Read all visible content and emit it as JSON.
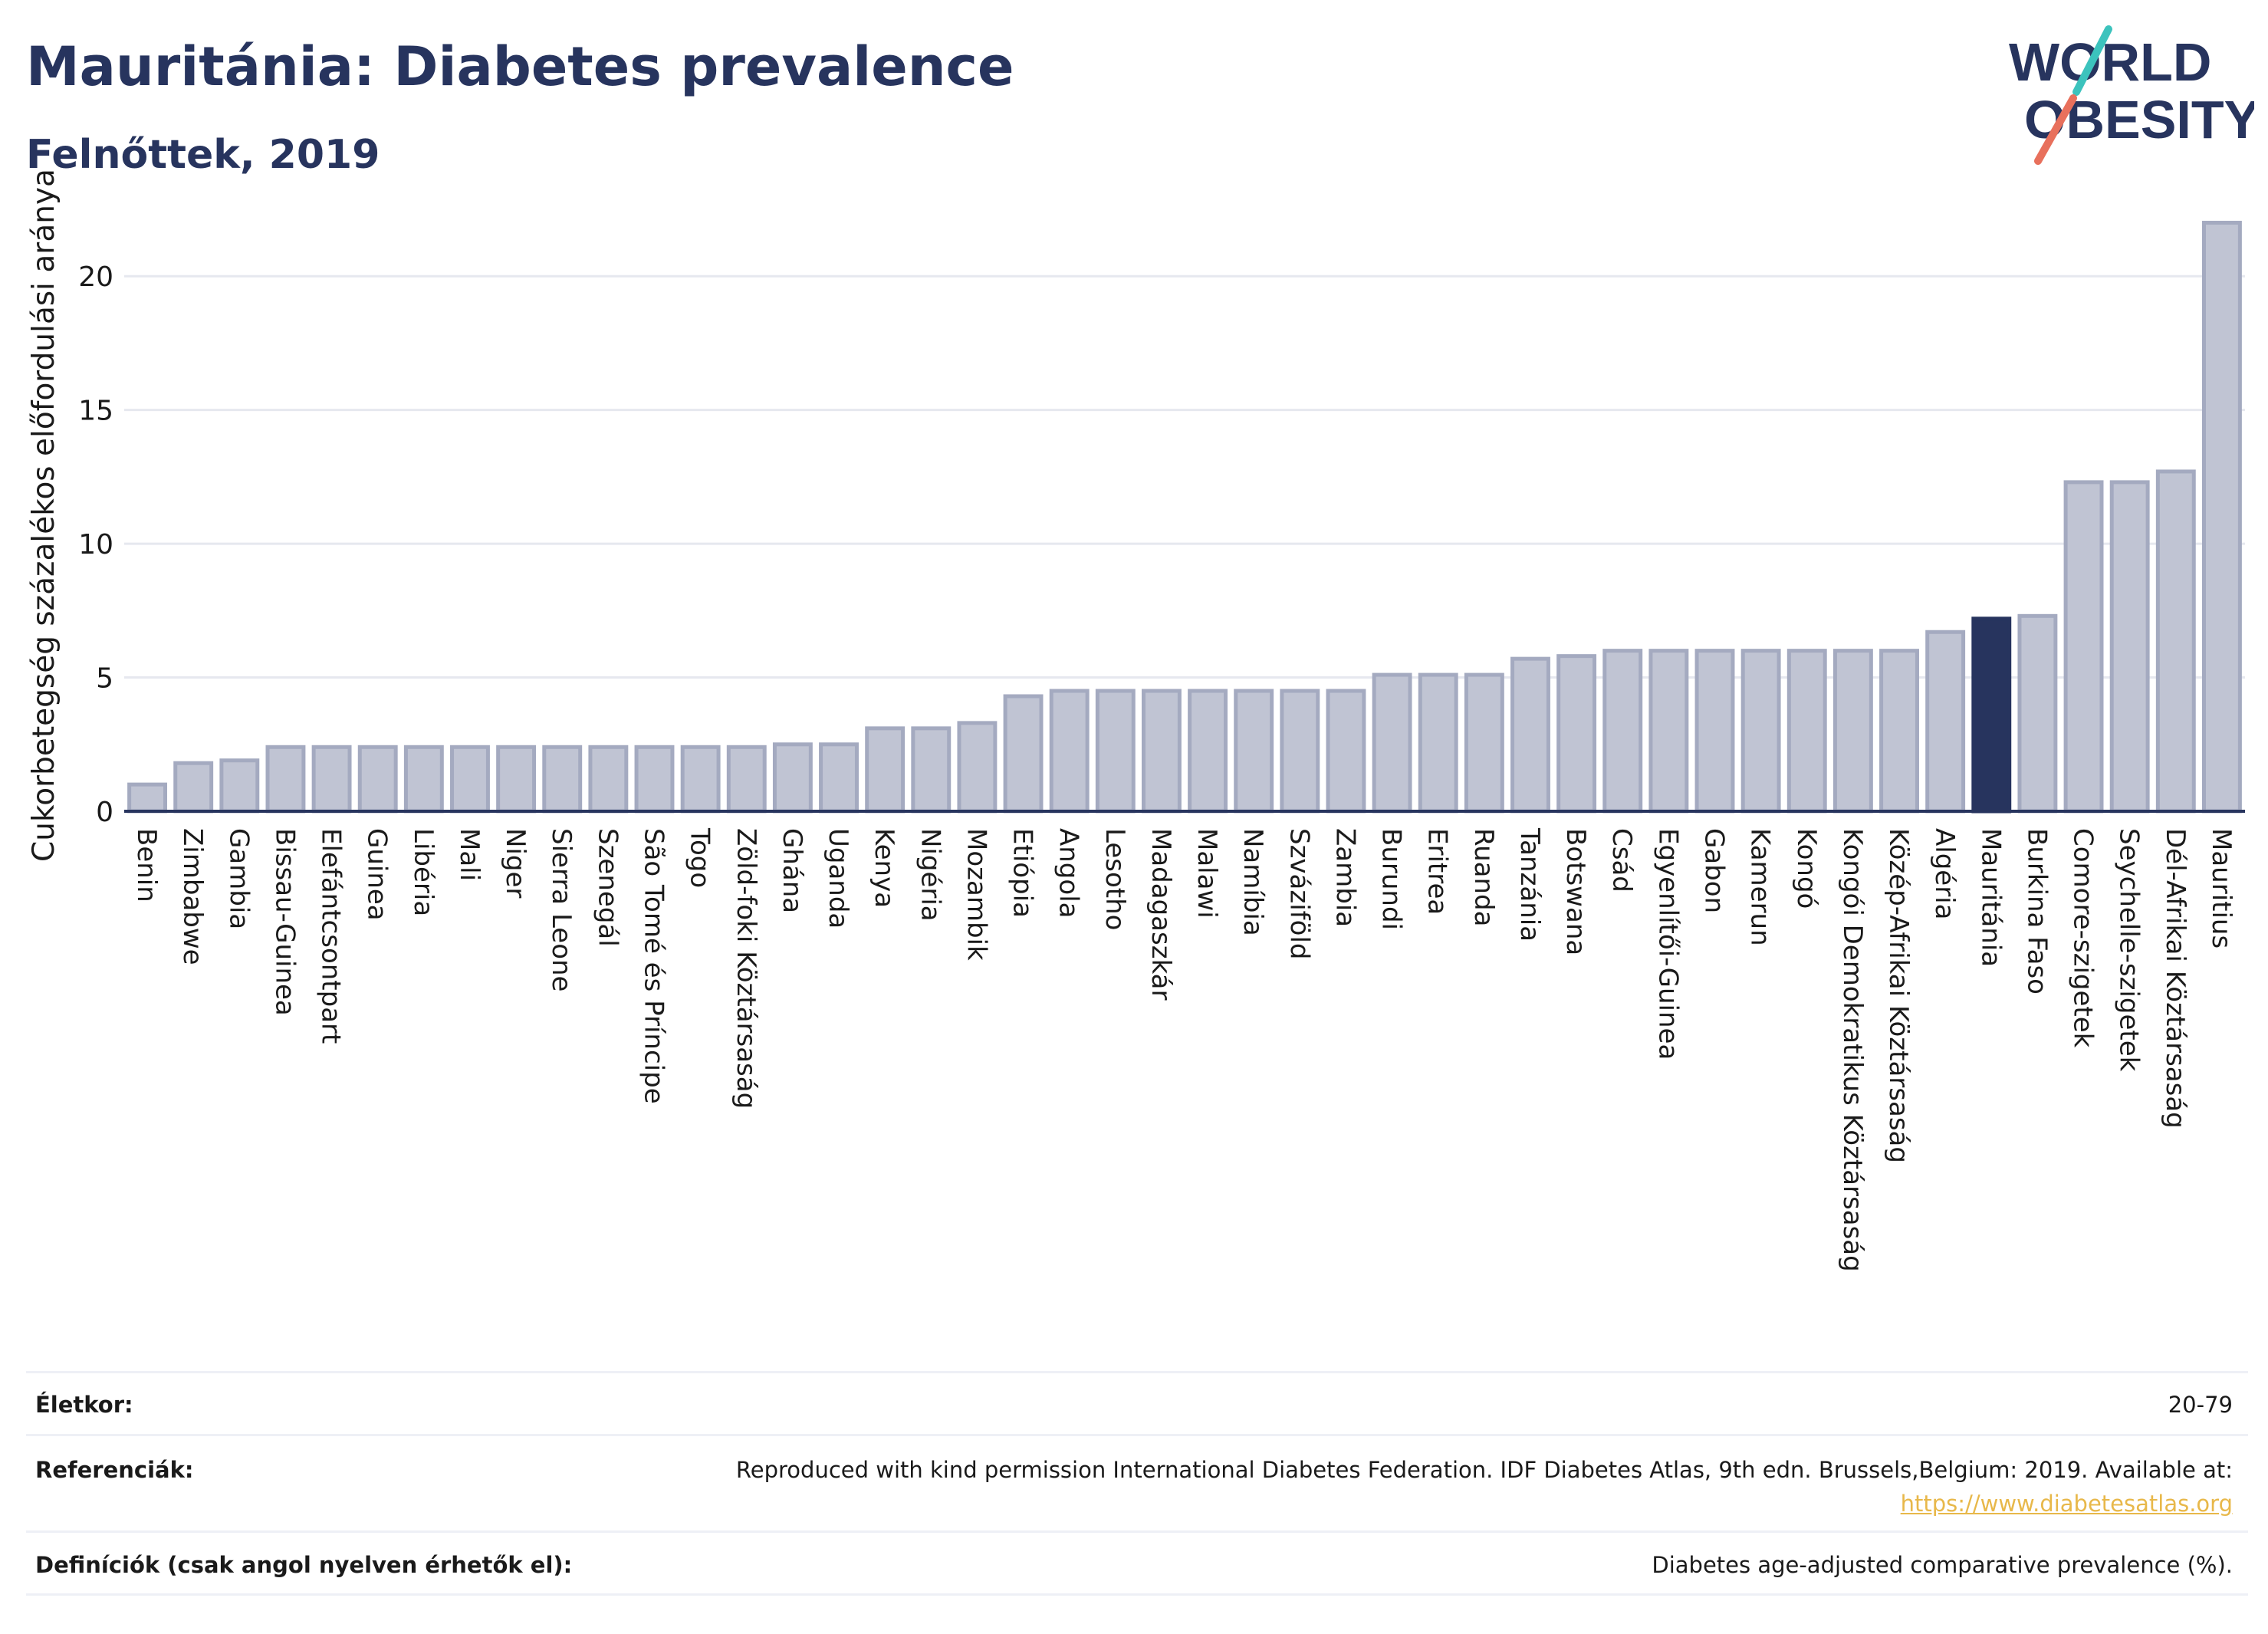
{
  "header": {
    "title": "Mauritánia: Diabetes prevalence",
    "subtitle": "Felnőttek, 2019"
  },
  "logo": {
    "line1": "WORLD",
    "line2": "OBESITY",
    "colors": {
      "text": "#27345e",
      "slash_teal": "#3cc3bd",
      "slash_coral": "#e8705c"
    }
  },
  "chart_data": {
    "type": "bar",
    "title": "Mauritánia: Diabetes prevalence",
    "subtitle": "Felnőttek, 2019",
    "xlabel": "",
    "ylabel": "Cukorbetegség százalékos előfordulási aránya",
    "ylim": [
      0,
      22.5
    ],
    "yticks": [
      0,
      5,
      10,
      15,
      20
    ],
    "grid": true,
    "highlight": "Mauritánia",
    "colors": {
      "bar": "#c0c4d3",
      "bar_border": "#a4aac0",
      "highlight": "#27345e",
      "grid": "#e6e8ef",
      "axis": "#27345e"
    },
    "categories": [
      "Benin",
      "Zimbabwe",
      "Gambia",
      "Bissau-Guinea",
      "Elefántcsontpart",
      "Guinea",
      "Libéria",
      "Mali",
      "Niger",
      "Sierra Leone",
      "Szenegál",
      "São Tomé és Príncipe",
      "Togo",
      "Zöld-foki Köztársaság",
      "Ghána",
      "Uganda",
      "Kenya",
      "Nigéria",
      "Mozambik",
      "Etiópia",
      "Angola",
      "Lesotho",
      "Madagaszkár",
      "Malawi",
      "Namíbia",
      "Szváziföld",
      "Zambia",
      "Burundi",
      "Eritrea",
      "Ruanda",
      "Tanzánia",
      "Botswana",
      "Csád",
      "Egyenlítői-Guinea",
      "Gabon",
      "Kamerun",
      "Kongó",
      "Kongói Demokratikus Köztársaság",
      "Közép-Afrikai Köztársaság",
      "Algéria",
      "Mauritánia",
      "Burkina Faso",
      "Comore-szigetek",
      "Seychelle-szigetek",
      "Dél-Afrikai Köztársaság",
      "Mauritius"
    ],
    "values": [
      1.0,
      1.8,
      1.9,
      2.4,
      2.4,
      2.4,
      2.4,
      2.4,
      2.4,
      2.4,
      2.4,
      2.4,
      2.4,
      2.4,
      2.5,
      2.5,
      3.1,
      3.1,
      3.3,
      4.3,
      4.5,
      4.5,
      4.5,
      4.5,
      4.5,
      4.5,
      4.5,
      5.1,
      5.1,
      5.1,
      5.7,
      5.8,
      6.0,
      6.0,
      6.0,
      6.0,
      6.0,
      6.0,
      6.0,
      6.7,
      7.2,
      7.3,
      12.3,
      12.3,
      12.7,
      22.0
    ]
  },
  "footer": {
    "age_label": "Életkor:",
    "age_value": "20-79",
    "refs_label": "Referenciák:",
    "refs_text": "Reproduced with kind permission International Diabetes Federation. IDF Diabetes Atlas, 9th edn. Brussels,Belgium: 2019. Available at:",
    "refs_link": "https://www.diabetesatlas.org",
    "defs_label": "Definíciók (csak angol nyelven érhetők el):",
    "defs_value": "Diabetes age-adjusted comparative prevalence (%)."
  }
}
